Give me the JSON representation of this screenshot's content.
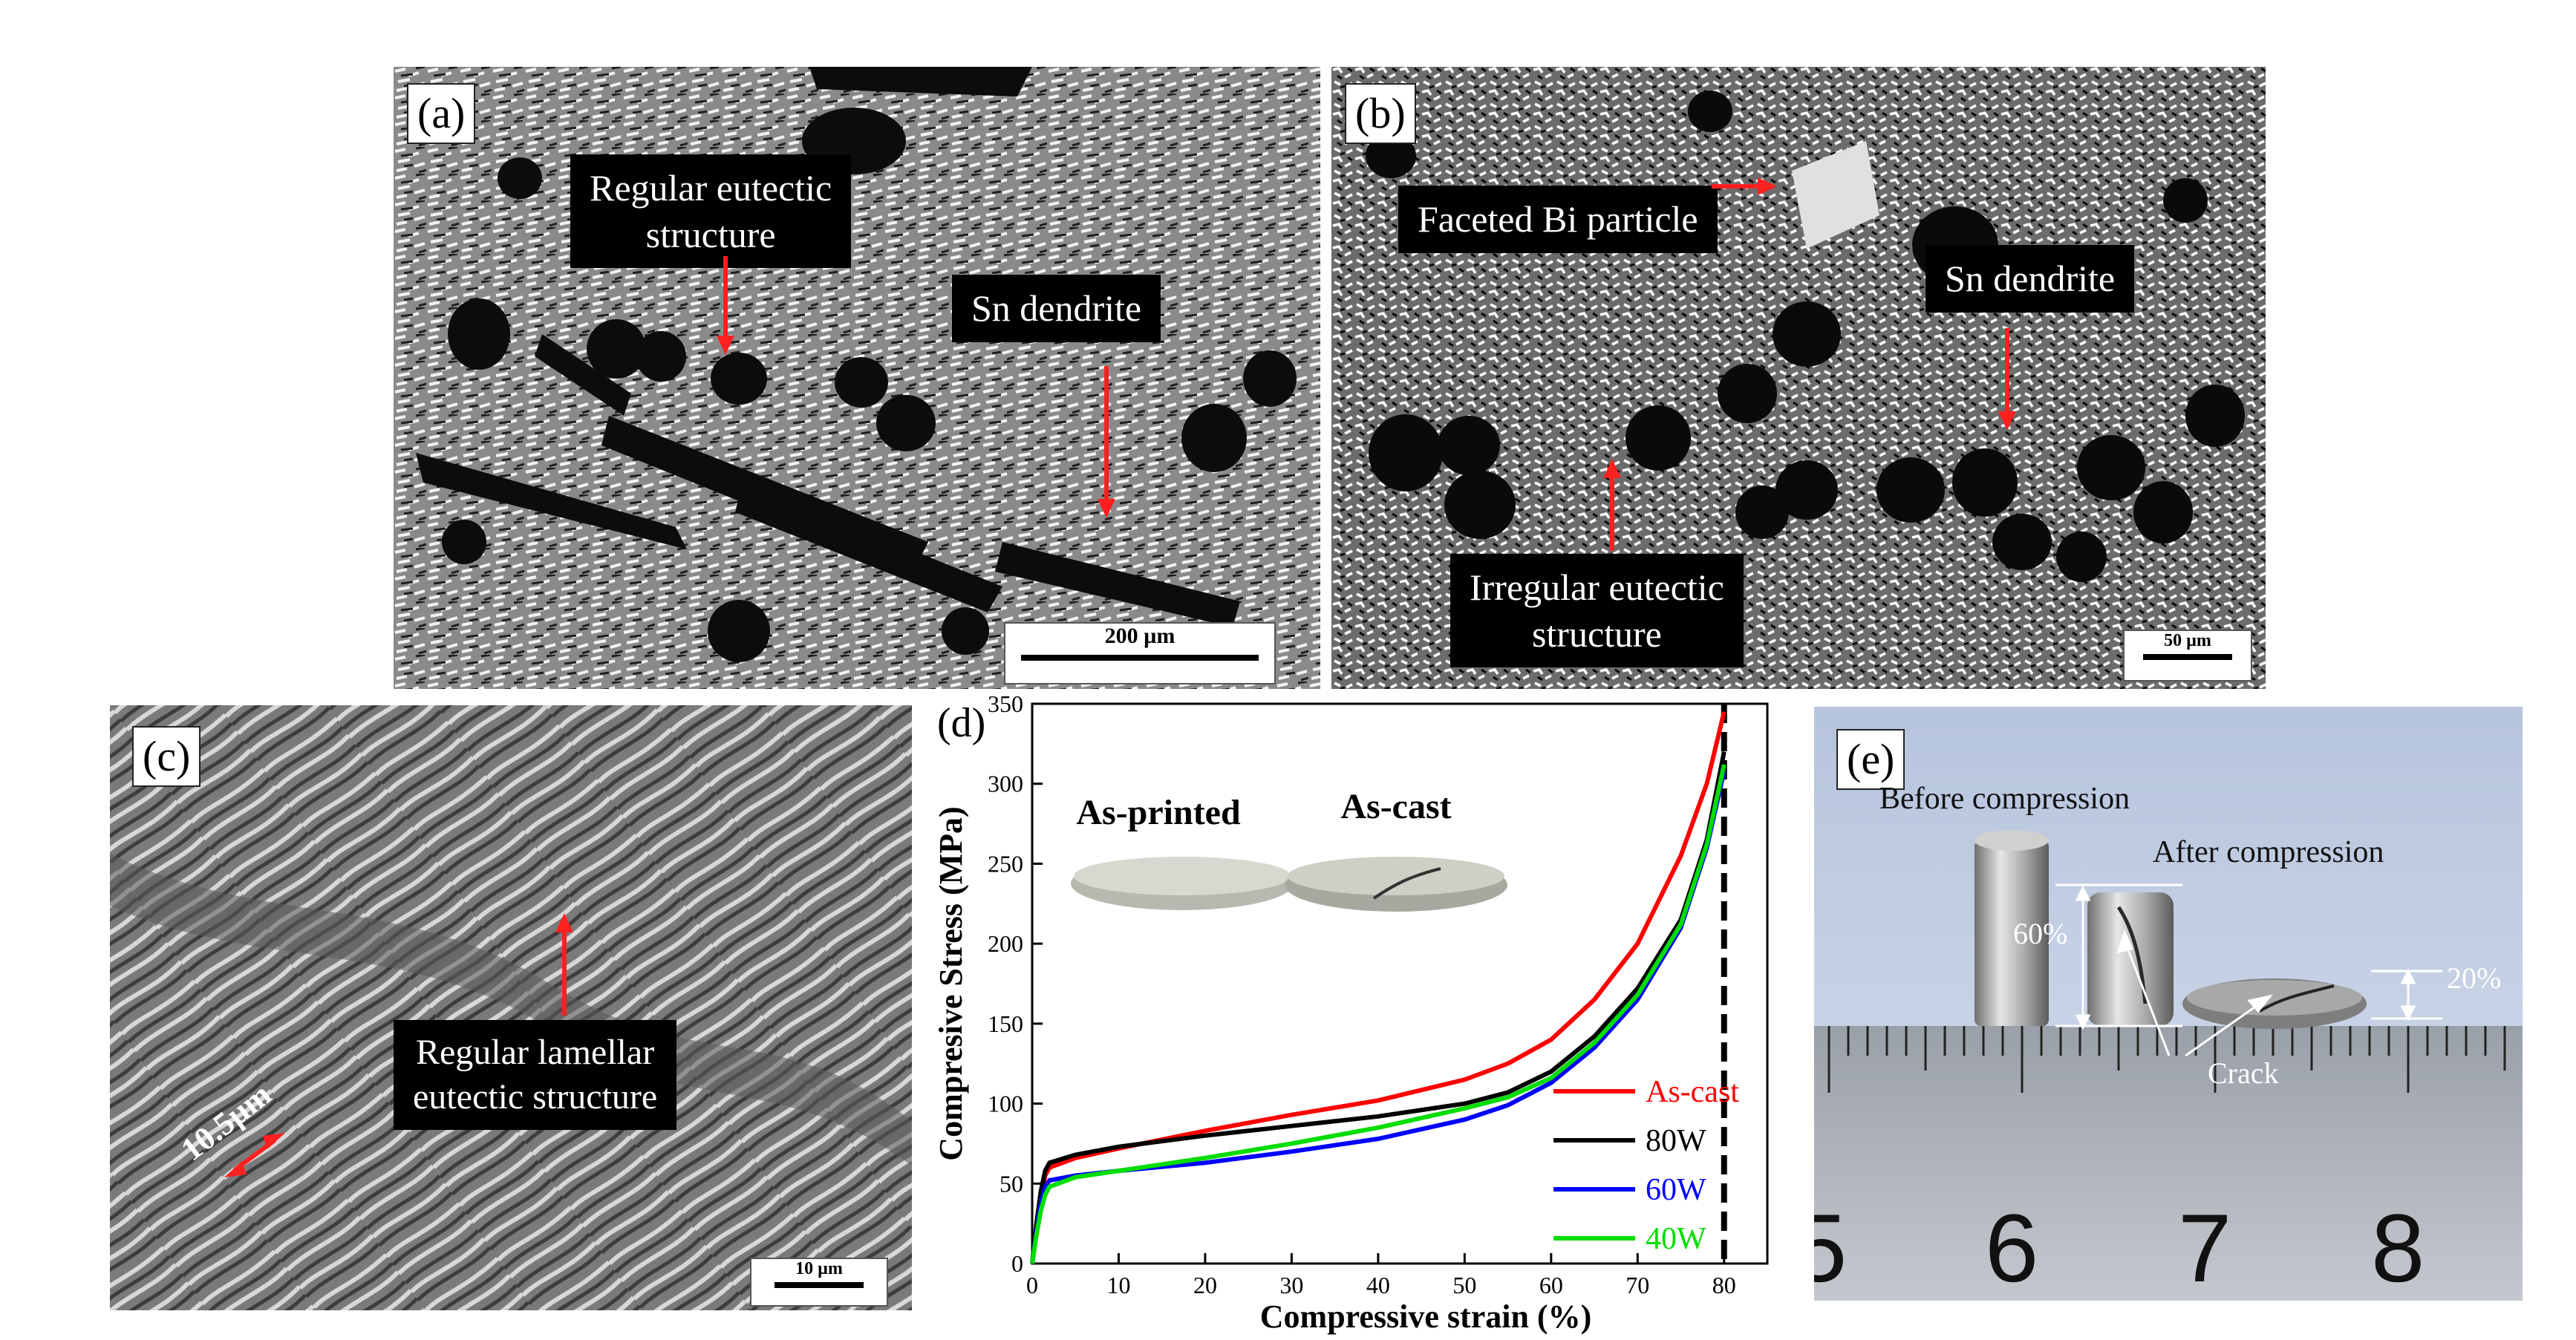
{
  "panels": {
    "a": {
      "label": "(a)",
      "annotations": [
        "Regular eutectic\nstructure",
        "Sn dendrite"
      ],
      "scale": "200 µm"
    },
    "b": {
      "label": "(b)",
      "annotations": [
        "Faceted Bi particle",
        "Sn dendrite",
        "Irregular eutectic\nstructure"
      ],
      "scale": "50 µm"
    },
    "c": {
      "label": "(c)",
      "annotations": [
        "Regular lamellar\neutectic  structure"
      ],
      "measure": "10.5µm",
      "scale": "10 µm"
    },
    "d": {
      "label": "(d)",
      "inset_labels": [
        "As-printed",
        "As-cast"
      ]
    },
    "e": {
      "label": "(e)",
      "annotations": [
        "Before compression",
        "After compression",
        "60%",
        "20%",
        "Crack"
      ],
      "ruler_numbers": [
        "5",
        "6",
        "7",
        "8"
      ]
    }
  },
  "chart_data": {
    "type": "line",
    "xlabel": "Compressive strain (%)",
    "ylabel": "Compresive Stress (MPa)",
    "xlim": [
      0,
      85
    ],
    "ylim": [
      0,
      350
    ],
    "xticks": [
      0,
      10,
      20,
      30,
      40,
      50,
      60,
      70,
      80
    ],
    "yticks": [
      0,
      50,
      100,
      150,
      200,
      250,
      300,
      350
    ],
    "legend_position": "lower-right",
    "series": [
      {
        "name": "As-cast",
        "color": "#ff0000",
        "points": [
          [
            0,
            0
          ],
          [
            0.5,
            20
          ],
          [
            1,
            40
          ],
          [
            1.5,
            55
          ],
          [
            2,
            60
          ],
          [
            5,
            66
          ],
          [
            10,
            72
          ],
          [
            20,
            83
          ],
          [
            30,
            93
          ],
          [
            40,
            102
          ],
          [
            50,
            115
          ],
          [
            55,
            125
          ],
          [
            60,
            140
          ],
          [
            65,
            165
          ],
          [
            70,
            200
          ],
          [
            75,
            255
          ],
          [
            78,
            300
          ],
          [
            80,
            345
          ]
        ]
      },
      {
        "name": "80W",
        "color": "#000000",
        "points": [
          [
            0,
            0
          ],
          [
            0.5,
            25
          ],
          [
            1,
            45
          ],
          [
            1.5,
            58
          ],
          [
            2,
            63
          ],
          [
            5,
            68
          ],
          [
            10,
            73
          ],
          [
            20,
            80
          ],
          [
            30,
            86
          ],
          [
            40,
            92
          ],
          [
            50,
            100
          ],
          [
            55,
            107
          ],
          [
            60,
            120
          ],
          [
            65,
            142
          ],
          [
            70,
            172
          ],
          [
            75,
            215
          ],
          [
            78,
            265
          ],
          [
            80,
            320
          ]
        ]
      },
      {
        "name": "60W",
        "color": "#0000ff",
        "points": [
          [
            0,
            0
          ],
          [
            0.5,
            20
          ],
          [
            1,
            38
          ],
          [
            1.5,
            48
          ],
          [
            2,
            52
          ],
          [
            5,
            55
          ],
          [
            10,
            58
          ],
          [
            20,
            63
          ],
          [
            30,
            70
          ],
          [
            40,
            78
          ],
          [
            50,
            90
          ],
          [
            55,
            99
          ],
          [
            60,
            113
          ],
          [
            65,
            135
          ],
          [
            70,
            165
          ],
          [
            75,
            210
          ],
          [
            78,
            260
          ],
          [
            80,
            308
          ]
        ]
      },
      {
        "name": "40W",
        "color": "#00dd00",
        "points": [
          [
            0,
            0
          ],
          [
            0.5,
            18
          ],
          [
            1,
            33
          ],
          [
            1.5,
            43
          ],
          [
            2,
            48
          ],
          [
            5,
            54
          ],
          [
            10,
            58
          ],
          [
            20,
            66
          ],
          [
            30,
            75
          ],
          [
            40,
            85
          ],
          [
            50,
            97
          ],
          [
            55,
            104
          ],
          [
            60,
            116
          ],
          [
            65,
            138
          ],
          [
            70,
            168
          ],
          [
            75,
            212
          ],
          [
            78,
            262
          ],
          [
            80,
            312
          ]
        ]
      }
    ],
    "annotations": {
      "vline_x": 80
    }
  }
}
